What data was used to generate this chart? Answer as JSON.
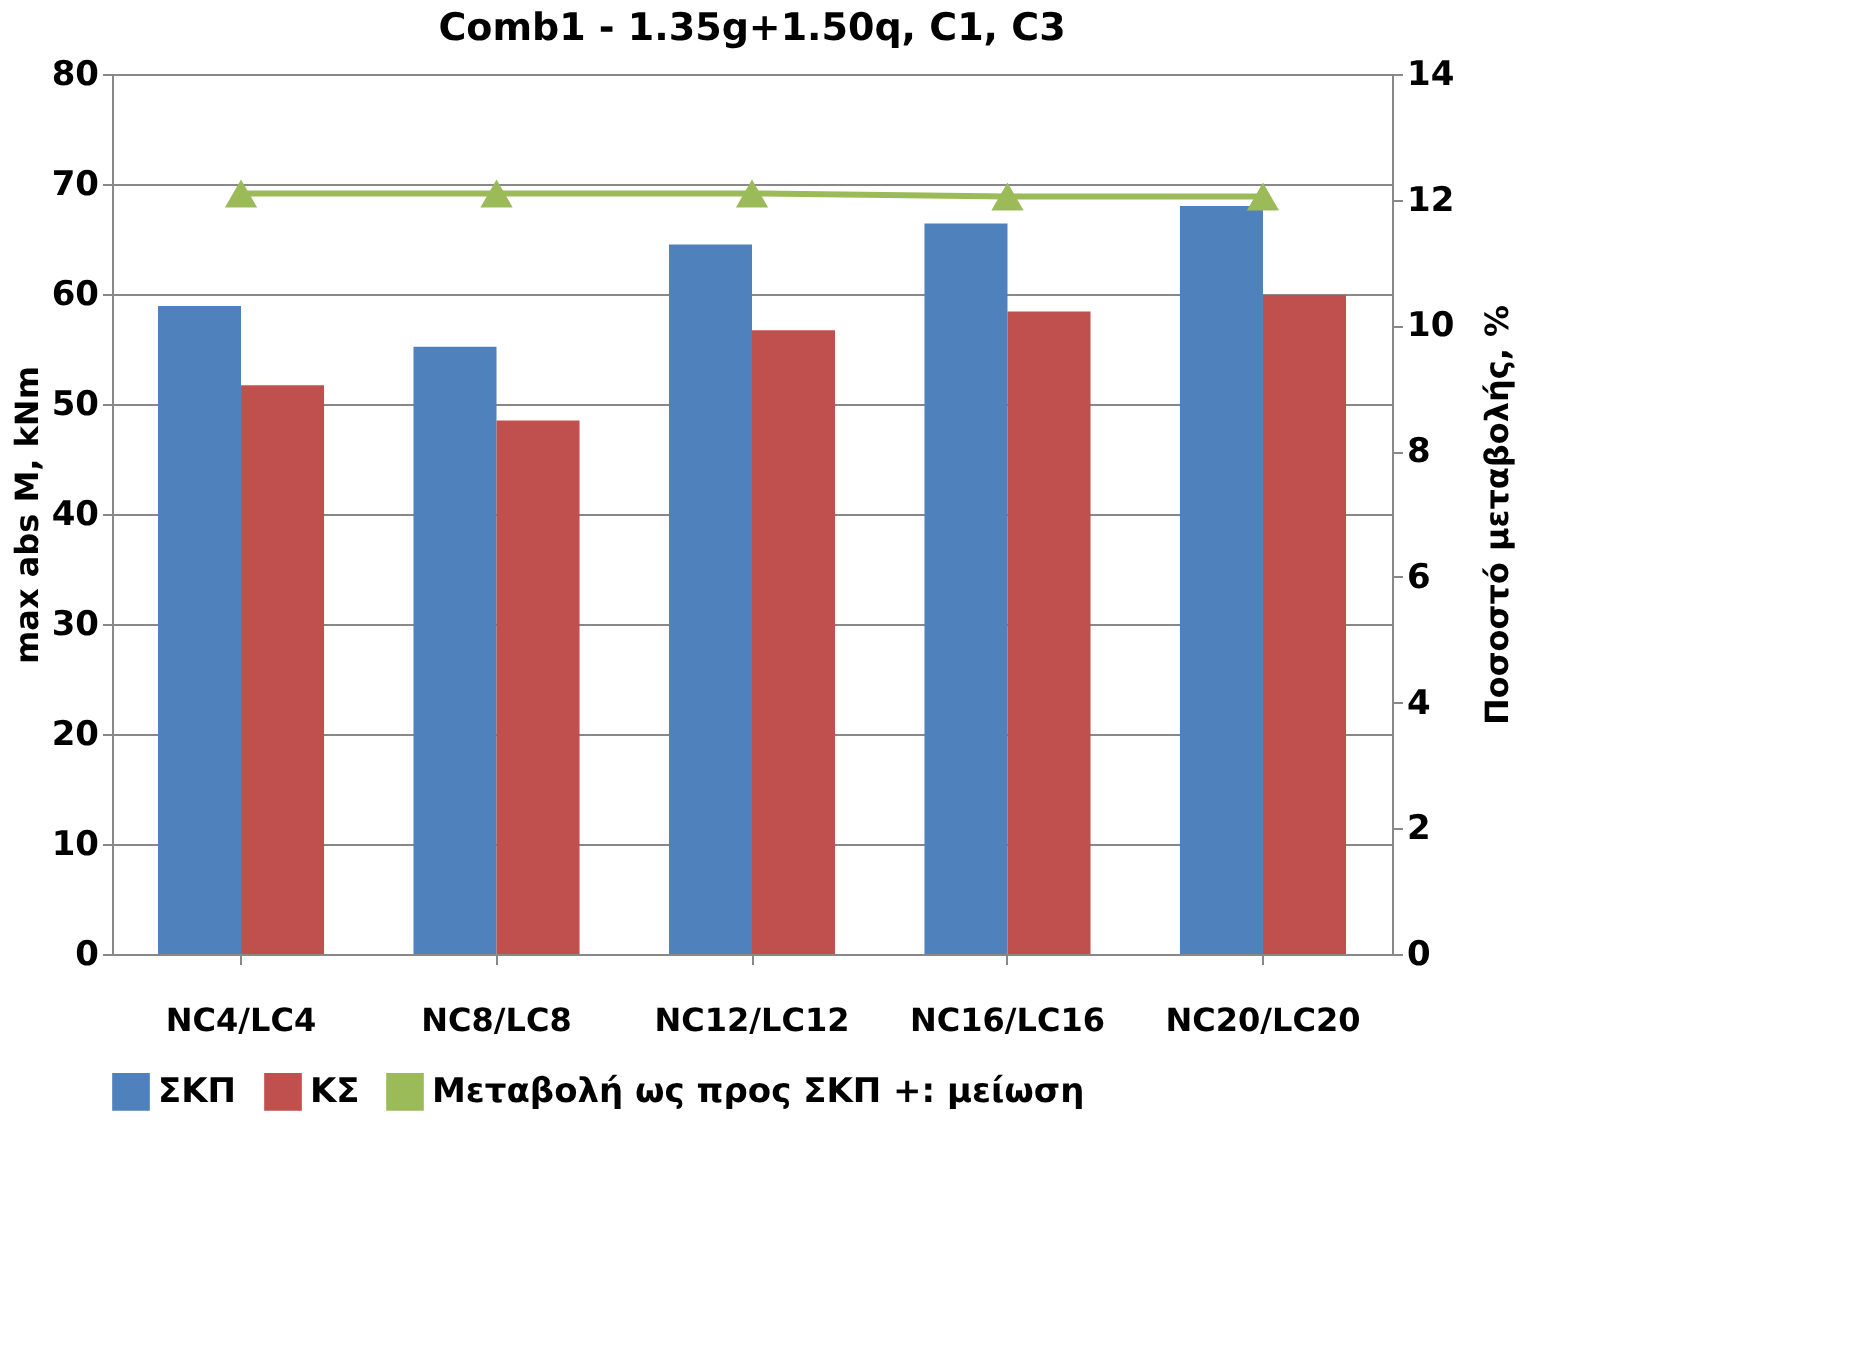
{
  "chart_data": {
    "type": "bar",
    "title": "Comb1 - 1.35g+1.50q, C1, C3",
    "ylabel": "max abs M, kNm",
    "y2label": "Ποσοστό μεταβολής, %",
    "categories": [
      "NC4/LC4",
      "NC8/LC8",
      "NC12/LC12",
      "NC16/LC16",
      "NC20/LC20"
    ],
    "series": [
      {
        "name": "ΣΚΠ",
        "color": "#4f81bd",
        "values": [
          58.9,
          55.2,
          64.5,
          66.4,
          68.0
        ]
      },
      {
        "name": "ΚΣ",
        "color": "#c0504d",
        "values": [
          51.7,
          48.5,
          56.7,
          58.4,
          59.9
        ]
      },
      {
        "name": "Μεταβολή ως προς ΣΚΠ +: μείωση",
        "color": "#9bbb59",
        "type": "line",
        "axis": "y2",
        "marker": "triangle",
        "values": [
          12.1,
          12.1,
          12.1,
          12.05,
          12.05
        ]
      }
    ],
    "ylim": [
      0,
      80
    ],
    "yticks": [
      0,
      10,
      20,
      30,
      40,
      50,
      60,
      70,
      80
    ],
    "y2lim": [
      0,
      14
    ],
    "y2ticks": [
      0,
      2,
      4,
      6,
      8,
      10,
      12,
      14
    ],
    "grid": "y",
    "legend": "bottom"
  }
}
